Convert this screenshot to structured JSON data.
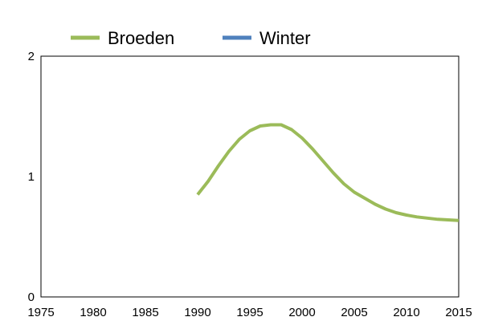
{
  "chart_data": {
    "type": "line",
    "title": "",
    "xlabel": "",
    "ylabel": "",
    "xlim": [
      1975,
      2015
    ],
    "ylim": [
      0,
      2
    ],
    "x_ticks": [
      "1975",
      "1980",
      "1985",
      "1990",
      "1995",
      "2000",
      "2005",
      "2010",
      "2015"
    ],
    "y_ticks": [
      "0",
      "1",
      "2"
    ],
    "grid": false,
    "legend_position": "top",
    "series": [
      {
        "name": "Broeden",
        "color": "#9BBB59",
        "x": [
          1990,
          1991,
          1992,
          1993,
          1994,
          1995,
          1996,
          1997,
          1998,
          1999,
          2000,
          2001,
          2002,
          2003,
          2004,
          2005,
          2006,
          2007,
          2008,
          2009,
          2010,
          2011,
          2012,
          2013,
          2014,
          2015
        ],
        "y": [
          0.85,
          0.96,
          1.09,
          1.21,
          1.31,
          1.38,
          1.42,
          1.43,
          1.43,
          1.39,
          1.32,
          1.23,
          1.13,
          1.03,
          0.94,
          0.87,
          0.82,
          0.77,
          0.73,
          0.7,
          0.68,
          0.665,
          0.655,
          0.645,
          0.64,
          0.635
        ]
      },
      {
        "name": "Winter",
        "color": "#4F81BD",
        "x": [],
        "y": []
      }
    ]
  }
}
